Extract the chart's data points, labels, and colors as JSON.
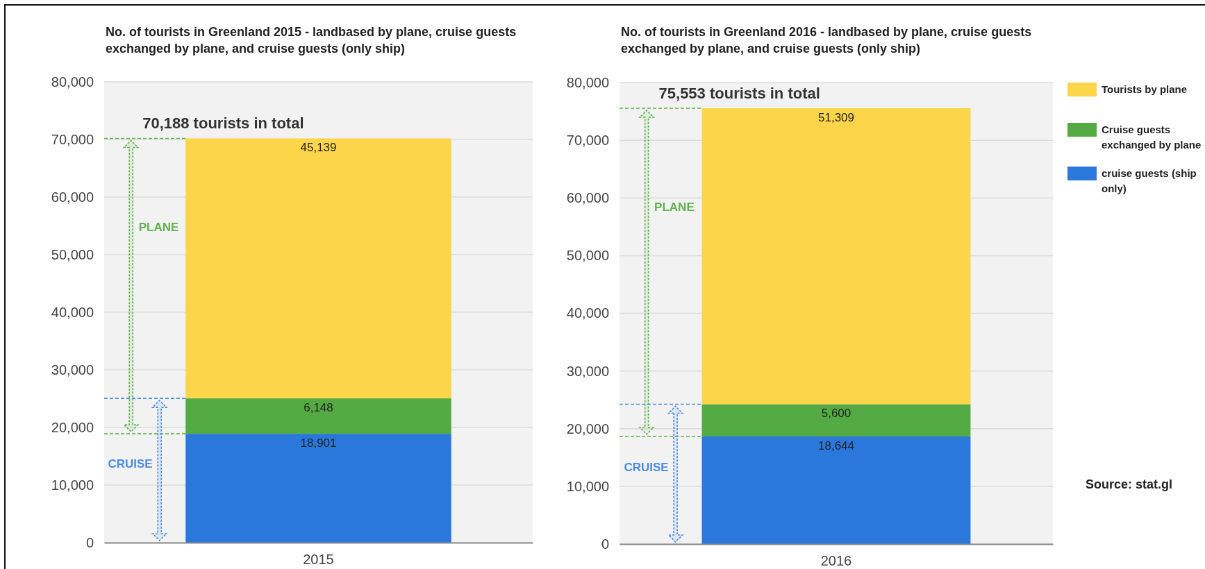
{
  "chart_data": [
    {
      "type": "bar",
      "title": "No. of tourists in Greenland 2015 - landbased by plane, cruise guests exchanged by plane, and cruise guests (only ship)",
      "categories": [
        "2015"
      ],
      "stacked": true,
      "series": [
        {
          "color": "#2b78dd",
          "values": [
            18901
          ],
          "value_labels": [
            "18,901"
          ]
        },
        {
          "color": "#55ab43",
          "values": [
            6148
          ],
          "value_labels": [
            "6,148"
          ]
        },
        {
          "color": "#fdd54a",
          "values": [
            45139
          ],
          "value_labels": [
            "45,139"
          ]
        }
      ],
      "ylim": [
        0,
        80000
      ],
      "yticks": [
        0,
        {
          "value": 10000,
          "label": "10,000"
        },
        {
          "value": 20000,
          "label": "20,000"
        },
        {
          "value": 30000,
          "label": "30,000"
        },
        {
          "value": 40000,
          "label": "40,000"
        },
        {
          "value": 50000,
          "label": "50,000"
        },
        {
          "value": 60000,
          "label": "60,000"
        },
        {
          "value": 70000,
          "label": "70,000"
        },
        {
          "value": 80000,
          "label": "80,000"
        }
      ],
      "grid": "y",
      "annotations": [
        {
          "text": "70,188 tourists in total",
          "x": "2015",
          "y": 70188
        },
        "PLANE",
        "CRUISE"
      ]
    },
    {
      "type": "bar",
      "title": "No. of tourists in Greenland 2016 - landbased by plane, cruise guests exchanged by plane, and cruise guests (only ship)",
      "categories": [
        "2016"
      ],
      "stacked": true,
      "series": [
        {
          "name": "cruise guests (ship only)",
          "color": "#2b78dd",
          "values": [
            18644
          ],
          "value_labels": [
            "18,644"
          ]
        },
        {
          "name": "Cruise guests exchanged by plane",
          "color": "#55ab43",
          "values": [
            5600
          ],
          "value_labels": [
            "5,600"
          ]
        },
        {
          "name": "Tourists by plane",
          "color": "#fdd54a",
          "values": [
            51309
          ],
          "value_labels": [
            "51,309"
          ]
        }
      ],
      "ylim": [
        0,
        80000
      ],
      "yticks": [
        0,
        {
          "value": 10000,
          "label": "10,000"
        },
        {
          "value": 20000,
          "label": "20,000"
        },
        {
          "value": 30000,
          "label": "30,000"
        },
        {
          "value": 40000,
          "label": "40,000"
        },
        {
          "value": 50000,
          "label": "50,000"
        },
        {
          "value": 60000,
          "label": "60,000"
        },
        {
          "value": 70000,
          "label": "70,000"
        },
        {
          "value": 80000,
          "label": "80,000"
        }
      ],
      "grid": "y",
      "legend": "right",
      "annotations": [
        {
          "text": "75,553 tourists in total",
          "x": "2016",
          "y": 75553
        },
        "PLANE",
        "CRUISE",
        "Source: stat.gl"
      ]
    }
  ]
}
